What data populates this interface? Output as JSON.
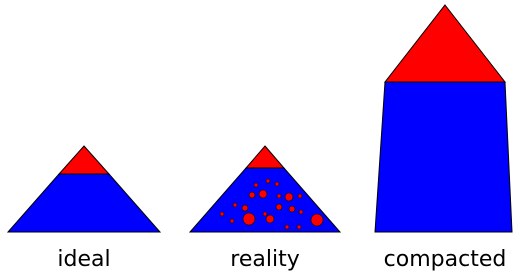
{
  "labels": [
    "ideal",
    "reality",
    "compacted"
  ]
}
